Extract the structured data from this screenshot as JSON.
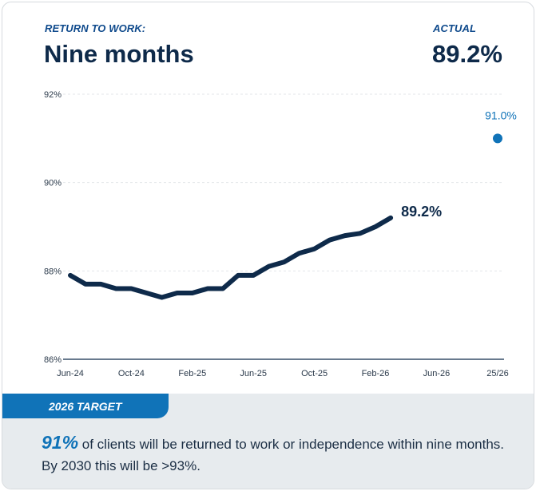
{
  "header": {
    "left_label": "RETURN TO WORK:",
    "title": "Nine months",
    "right_label": "ACTUAL",
    "actual_value": "89.2%"
  },
  "chart_data": {
    "type": "line",
    "title": "",
    "xlabel": "",
    "ylabel": "",
    "ylim": [
      86,
      92
    ],
    "y_ticks": [
      "86%",
      "88%",
      "90%",
      "92%"
    ],
    "y_tick_values": [
      86,
      88,
      90,
      92
    ],
    "x_ticks": [
      "Jun-24",
      "Oct-24",
      "Feb-25",
      "Jun-25",
      "Oct-25",
      "Feb-26",
      "Jun-26",
      "25/26"
    ],
    "grid": true,
    "series": [
      {
        "x": [
          "Jun-24",
          "Jul-24",
          "Aug-24",
          "Sep-24",
          "Oct-24",
          "Nov-24",
          "Dec-24",
          "Jan-25",
          "Feb-25",
          "Mar-25",
          "Apr-25",
          "May-25",
          "Jun-25",
          "Jul-25",
          "Aug-25",
          "Sep-25",
          "Oct-25",
          "Nov-25",
          "Dec-25",
          "Jan-26",
          "Feb-26",
          "Mar-26"
        ],
        "values": [
          87.9,
          87.7,
          87.7,
          87.6,
          87.6,
          87.5,
          87.4,
          87.5,
          87.5,
          87.6,
          87.6,
          87.9,
          87.9,
          88.1,
          88.2,
          88.4,
          88.5,
          88.7,
          88.8,
          88.85,
          89.0,
          89.2
        ],
        "color": "#0e2a4a",
        "end_label": "89.2%"
      }
    ],
    "target_point": {
      "x": "25/26",
      "value": 91.0,
      "label": "91.0%",
      "color": "#1073b8"
    }
  },
  "footer": {
    "tab_label": "2026 TARGET",
    "highlight": "91%",
    "text": " of clients will be returned to work or independence within nine months. By 2030 this will be >93%."
  }
}
